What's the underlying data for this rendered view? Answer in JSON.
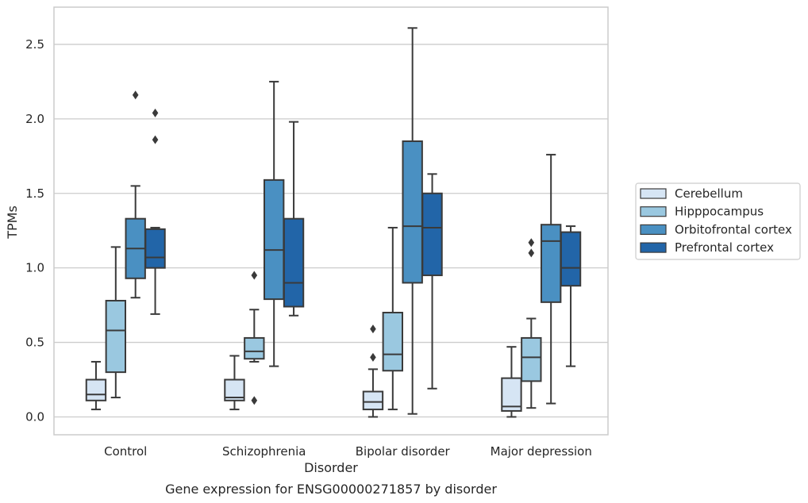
{
  "chart_data": {
    "type": "boxplot",
    "caption": "Gene expression for ENSG00000271857 by disorder",
    "xlabel": "Disorder",
    "ylabel": "TPMs",
    "ylim": [
      -0.12,
      2.75
    ],
    "yticks": [
      0.0,
      0.5,
      1.0,
      1.5,
      2.0,
      2.5
    ],
    "ytick_labels": [
      "0.0",
      "0.5",
      "1.0",
      "1.5",
      "2.0",
      "2.5"
    ],
    "grid": true,
    "legend_position": "right",
    "categories": [
      "Control",
      "Schizophrenia",
      "Bipolar disorder",
      "Major depression"
    ],
    "series": [
      {
        "name": "Cerebellum",
        "color": "#d6e5f4",
        "boxes": [
          {
            "whislo": 0.05,
            "q1": 0.11,
            "med": 0.15,
            "q3": 0.25,
            "whishi": 0.37,
            "fliers": []
          },
          {
            "whislo": 0.05,
            "q1": 0.11,
            "med": 0.13,
            "q3": 0.25,
            "whishi": 0.41,
            "fliers": []
          },
          {
            "whislo": 0.0,
            "q1": 0.05,
            "med": 0.1,
            "q3": 0.17,
            "whishi": 0.32,
            "fliers": [
              0.4,
              0.59
            ]
          },
          {
            "whislo": 0.0,
            "q1": 0.04,
            "med": 0.07,
            "q3": 0.26,
            "whishi": 0.47,
            "fliers": []
          }
        ]
      },
      {
        "name": "Hipppocampus",
        "color": "#9ac8e0",
        "boxes": [
          {
            "whislo": 0.13,
            "q1": 0.3,
            "med": 0.58,
            "q3": 0.78,
            "whishi": 1.14,
            "fliers": []
          },
          {
            "whislo": 0.37,
            "q1": 0.39,
            "med": 0.44,
            "q3": 0.53,
            "whishi": 0.72,
            "fliers": [
              0.11,
              0.95
            ]
          },
          {
            "whislo": 0.05,
            "q1": 0.31,
            "med": 0.42,
            "q3": 0.7,
            "whishi": 1.27,
            "fliers": []
          },
          {
            "whislo": 0.06,
            "q1": 0.24,
            "med": 0.4,
            "q3": 0.53,
            "whishi": 0.66,
            "fliers": [
              1.1,
              1.17
            ]
          }
        ]
      },
      {
        "name": "Orbitofrontal cortex",
        "color": "#4a90c2",
        "boxes": [
          {
            "whislo": 0.8,
            "q1": 0.93,
            "med": 1.13,
            "q3": 1.33,
            "whishi": 1.55,
            "fliers": [
              2.16
            ]
          },
          {
            "whislo": 0.34,
            "q1": 0.79,
            "med": 1.12,
            "q3": 1.59,
            "whishi": 2.25,
            "fliers": []
          },
          {
            "whislo": 0.02,
            "q1": 0.9,
            "med": 1.28,
            "q3": 1.85,
            "whishi": 2.61,
            "fliers": []
          },
          {
            "whislo": 0.09,
            "q1": 0.77,
            "med": 1.18,
            "q3": 1.29,
            "whishi": 1.76,
            "fliers": []
          }
        ]
      },
      {
        "name": "Prefrontal cortex",
        "color": "#2265a8",
        "boxes": [
          {
            "whislo": 0.69,
            "q1": 1.0,
            "med": 1.07,
            "q3": 1.26,
            "whishi": 1.27,
            "fliers": [
              1.86,
              2.04
            ]
          },
          {
            "whislo": 0.68,
            "q1": 0.74,
            "med": 0.9,
            "q3": 1.33,
            "whishi": 1.98,
            "fliers": []
          },
          {
            "whislo": 0.19,
            "q1": 0.95,
            "med": 1.27,
            "q3": 1.5,
            "whishi": 1.63,
            "fliers": []
          },
          {
            "whislo": 0.34,
            "q1": 0.88,
            "med": 1.0,
            "q3": 1.24,
            "whishi": 1.28,
            "fliers": []
          }
        ]
      }
    ]
  }
}
